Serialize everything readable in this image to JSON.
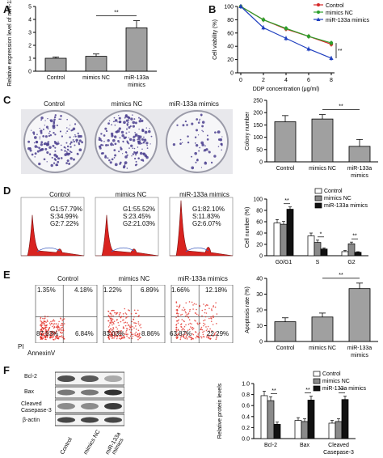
{
  "panels": {
    "A": "A",
    "B": "B",
    "C": "C",
    "D": "D",
    "E": "E",
    "F": "F"
  },
  "chart_data": [
    {
      "id": "A",
      "type": "bar",
      "categories": [
        "Control",
        "mimics NC",
        "miR-133a mimics"
      ],
      "values": [
        1.0,
        1.15,
        3.35
      ],
      "errors": [
        0.1,
        0.18,
        0.55
      ],
      "ylabel": "Relative expression level of miR-133a",
      "ylim": [
        0,
        5
      ],
      "yticks": [
        "0",
        "1",
        "2",
        "3",
        "4",
        "5"
      ],
      "sig": "**",
      "colors": [
        "#a0a0a0",
        "#a0a0a0",
        "#a0a0a0"
      ]
    },
    {
      "id": "B",
      "type": "line",
      "x": [
        0,
        2,
        4,
        6,
        8
      ],
      "xticks": [
        "0",
        "2",
        "4",
        "6",
        "8"
      ],
      "xlabel": "DDP concentration (μg/ml)",
      "ylabel": "Cell viability (%)",
      "ylim": [
        0,
        100
      ],
      "yticks": [
        "0",
        "20",
        "40",
        "60",
        "80",
        "100"
      ],
      "series": [
        {
          "name": "Control",
          "values": [
            100,
            80,
            66,
            55,
            43
          ],
          "color": "#d62728",
          "marker": "circle"
        },
        {
          "name": "mimics NC",
          "values": [
            100,
            80,
            67,
            55,
            45
          ],
          "color": "#2ca02c",
          "marker": "circle"
        },
        {
          "name": "miR-133a mimics",
          "values": [
            100,
            68,
            52,
            36,
            22
          ],
          "color": "#1f3fbf",
          "marker": "triangle"
        }
      ],
      "sig": "**"
    },
    {
      "id": "C",
      "type": "bar",
      "categories": [
        "Control",
        "mimics NC",
        "miR-133a mimics"
      ],
      "values": [
        163,
        174,
        63
      ],
      "errors": [
        25,
        18,
        28
      ],
      "ylabel": "Colony number",
      "ylim": [
        0,
        250
      ],
      "yticks": [
        "0",
        "50",
        "100",
        "150",
        "200",
        "250"
      ],
      "sig": "**",
      "colors": [
        "#a0a0a0",
        "#a0a0a0",
        "#a0a0a0"
      ]
    },
    {
      "id": "D",
      "type": "bar",
      "categories": [
        "G0/G1",
        "S",
        "G2"
      ],
      "ylabel": "Cell number (%)",
      "ylim": [
        0,
        100
      ],
      "yticks": [
        "0",
        "20",
        "40",
        "60",
        "80",
        "100"
      ],
      "series": [
        {
          "name": "Control",
          "values": [
            57.79,
            34.99,
            7.22
          ],
          "errors": [
            6,
            5,
            2
          ],
          "color": "#ffffff"
        },
        {
          "name": "mimics NC",
          "values": [
            55.52,
            23.45,
            21.03
          ],
          "errors": [
            5,
            4,
            3
          ],
          "color": "#8a8a8a"
        },
        {
          "name": "miR-133a mimics",
          "values": [
            82.1,
            11.83,
            6.07
          ],
          "errors": [
            4,
            2,
            1
          ],
          "color": "#111111"
        }
      ],
      "sig": [
        "**",
        "*",
        "**"
      ]
    },
    {
      "id": "E",
      "type": "bar",
      "categories": [
        "Control",
        "mimics NC",
        "miR-133a mimics"
      ],
      "values": [
        12.5,
        15.5,
        33.5
      ],
      "errors": [
        2.5,
        2.5,
        3.5
      ],
      "ylabel": "Apoptosis rate (%)",
      "ylim": [
        0,
        40
      ],
      "yticks": [
        "0",
        "10",
        "20",
        "30",
        "40"
      ],
      "sig": "**",
      "colors": [
        "#a0a0a0",
        "#a0a0a0",
        "#a0a0a0"
      ]
    },
    {
      "id": "F",
      "type": "bar",
      "categories": [
        "Bcl-2",
        "Bax",
        "Cleaved Casepase-3"
      ],
      "ylabel": "Relative protein levels",
      "ylim": [
        0,
        1.0
      ],
      "yticks": [
        "0.0",
        "0.2",
        "0.4",
        "0.6",
        "0.8",
        "1.0"
      ],
      "series": [
        {
          "name": "Control",
          "values": [
            0.78,
            0.33,
            0.28
          ],
          "errors": [
            0.08,
            0.05,
            0.05
          ],
          "color": "#ffffff"
        },
        {
          "name": "mimics NC",
          "values": [
            0.69,
            0.31,
            0.31
          ],
          "errors": [
            0.07,
            0.05,
            0.05
          ],
          "color": "#8a8a8a"
        },
        {
          "name": "miR-133a mimics",
          "values": [
            0.26,
            0.7,
            0.71
          ],
          "errors": [
            0.04,
            0.07,
            0.06
          ],
          "color": "#111111"
        }
      ],
      "sig": [
        "**",
        "**",
        "**"
      ]
    }
  ],
  "panelC_images": [
    "Control",
    "mimics NC",
    "miR-133a mimics"
  ],
  "panelD_images": [
    {
      "title": "Control",
      "g1": "G1:57.79%",
      "s": "S:34.99%",
      "g2": "G2:7.22%"
    },
    {
      "title": "mimics NC",
      "g1": "G1:55.52%",
      "s": "S:23.45%",
      "g2": "G2:21.03%"
    },
    {
      "title": "miR-133a mimics",
      "g1": "G1:82.10%",
      "s": "S:11.83%",
      "g2": "G2:6.07%"
    }
  ],
  "panelE_images": [
    {
      "title": "Control",
      "q1": "1.35%",
      "q2": "4.18%",
      "q3": "87.63%",
      "q4": "6.84%"
    },
    {
      "title": "mimics NC",
      "q1": "1.22%",
      "q2": "6.89%",
      "q3": "83.03%",
      "q4": "8.86%"
    },
    {
      "title": "miR-133a mimics",
      "q1": "1.66%",
      "q2": "12.18%",
      "q3": "63.87%",
      "q4": "22.29%"
    }
  ],
  "panelE_axes": {
    "y": "PI",
    "x": "AnnexinV"
  },
  "panelF_blot": {
    "proteins": [
      "Bcl-2",
      "Bax",
      "Cleaved Casepase-3",
      "β-actin"
    ],
    "lanes": [
      "Control",
      "mimics NC",
      "miR-133a mimics"
    ]
  }
}
